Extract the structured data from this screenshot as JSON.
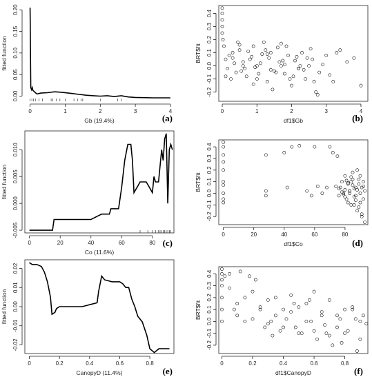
{
  "chart_data": [
    {
      "type": "line",
      "panel_label": "(a)",
      "xlabel": "Gb (19.4%)",
      "ylabel": "fitted function",
      "xlim": [
        -0.15,
        4.1
      ],
      "ylim": [
        -0.012,
        0.21
      ],
      "xticks": [
        0,
        1,
        2,
        3,
        4
      ],
      "yticks": [
        0.0,
        0.05,
        0.1,
        0.15,
        0.2
      ],
      "ytick_labels": [
        "0.00",
        "0.05",
        "0.10",
        "0.15",
        "0.20"
      ],
      "rug": [
        0.0,
        0.05,
        0.1,
        0.15,
        0.25,
        0.35,
        0.6,
        0.65,
        0.75,
        0.85,
        1.0,
        1.25,
        1.35,
        1.45,
        1.5,
        2.0,
        2.5,
        2.6
      ],
      "series": [
        {
          "x": [
            0.0,
            0.02,
            0.04,
            0.06,
            0.08,
            0.1,
            0.15,
            0.2,
            0.3,
            0.5,
            0.7,
            0.9,
            1.2,
            1.4,
            1.6,
            1.8,
            2.0,
            2.2,
            2.4,
            2.6,
            2.8,
            3.0,
            3.5,
            4.0
          ],
          "y": [
            0.205,
            0.02,
            0.015,
            0.02,
            0.013,
            0.012,
            0.008,
            0.005,
            0.007,
            0.008,
            0.01,
            0.009,
            0.006,
            0.004,
            0.002,
            0.001,
            0.0,
            0.001,
            -0.001,
            0.001,
            -0.002,
            -0.003,
            -0.004,
            -0.004
          ]
        }
      ]
    },
    {
      "type": "scatter",
      "panel_label": "(b)",
      "xlabel": "df1$Gb",
      "ylabel": "BRT$fit",
      "xlim": [
        -0.1,
        4.2
      ],
      "ylim": [
        -0.27,
        0.46
      ],
      "xticks": [
        0,
        1,
        2,
        3,
        4
      ],
      "yticks": [
        -0.2,
        -0.1,
        0.0,
        0.1,
        0.2,
        0.3,
        0.4
      ],
      "ytick_labels": [
        "-0.2",
        "-0.1",
        "0.0",
        "0.1",
        "0.2",
        "0.3",
        "0.4"
      ],
      "series": [
        {
          "x": [
            0.0,
            0.0,
            0.0,
            0.0,
            0.0,
            0.02,
            0.05,
            0.1,
            0.15,
            0.2,
            0.3,
            0.4,
            0.5,
            0.6,
            0.7,
            0.8,
            0.9,
            1.0,
            1.1,
            1.2,
            1.3,
            1.35,
            1.4,
            1.5,
            1.6,
            1.7,
            1.8,
            1.9,
            2.0,
            2.1,
            2.2,
            2.3,
            2.4,
            2.5,
            2.6,
            2.7,
            2.8,
            3.0,
            3.2,
            3.4,
            3.6,
            3.8,
            4.0,
            0.25,
            0.45,
            0.65,
            0.85,
            1.05,
            1.25,
            1.45,
            1.65,
            1.85,
            2.05,
            2.25,
            2.45,
            2.65,
            0.35,
            0.55,
            0.75,
            0.95,
            1.15,
            1.55,
            1.75,
            1.95,
            2.15,
            2.35,
            2.55,
            2.75,
            2.9,
            3.1,
            3.3,
            0.1,
            0.3,
            0.6,
            1.0,
            1.4,
            1.8,
            2.2,
            0.5,
            0.9,
            1.3,
            1.7
          ],
          "y": [
            0.44,
            0.4,
            0.35,
            0.3,
            0.25,
            0.2,
            0.15,
            0.05,
            -0.02,
            0.08,
            0.1,
            -0.05,
            0.12,
            0.0,
            -0.08,
            0.05,
            0.15,
            -0.1,
            0.02,
            0.18,
            -0.12,
            0.06,
            0.1,
            -0.04,
            0.14,
            0.0,
            -0.06,
            0.08,
            -0.15,
            0.04,
            -0.02,
            0.1,
            -0.1,
            0.0,
            0.05,
            -0.2,
            -0.05,
            0.08,
            -0.12,
            0.12,
            0.03,
            0.06,
            -0.15,
            -0.1,
            0.18,
            -0.02,
            0.07,
            -0.06,
            0.12,
            -0.18,
            0.03,
            0.15,
            -0.08,
            0.0,
            0.06,
            -0.12,
            0.02,
            -0.04,
            0.11,
            -0.01,
            0.09,
            -0.05,
            0.04,
            -0.1,
            0.07,
            -0.03,
            0.13,
            -0.22,
            0.01,
            -0.07,
            0.1,
            -0.08,
            0.06,
            0.03,
            0.0,
            -0.03,
            0.01,
            -0.02,
            0.16,
            -0.14,
            0.09,
            0.17
          ]
        }
      ]
    },
    {
      "type": "line",
      "panel_label": "(c)",
      "xlabel": "Co (11.6%)",
      "ylabel": "fitted function",
      "xlim": [
        -3,
        94
      ],
      "ylim": [
        -0.0055,
        0.0135
      ],
      "xticks": [
        0,
        20,
        40,
        60,
        80
      ],
      "yticks": [
        -0.005,
        0.0,
        0.005,
        0.01
      ],
      "ytick_labels": [
        "-0.005",
        "0.000",
        "0.005",
        "0.010"
      ],
      "rug": [
        72,
        77,
        80,
        82,
        84,
        85,
        86,
        87,
        88,
        89,
        90,
        91,
        92
      ],
      "series": [
        {
          "x": [
            0,
            5,
            10,
            15,
            16,
            20,
            30,
            40,
            47,
            48,
            52,
            53,
            58,
            60,
            62,
            64,
            66,
            67,
            68,
            70,
            72,
            74,
            76,
            78,
            80,
            81,
            82,
            84,
            86,
            87,
            88,
            89,
            90,
            91,
            92,
            93
          ],
          "y": [
            -0.005,
            -0.005,
            -0.005,
            -0.005,
            -0.003,
            -0.003,
            -0.003,
            -0.003,
            -0.002,
            -0.002,
            -0.002,
            -0.001,
            -0.001,
            0.003,
            0.008,
            0.011,
            0.011,
            0.008,
            0.002,
            0.003,
            0.004,
            0.004,
            0.004,
            0.003,
            0.002,
            0.005,
            0.004,
            0.004,
            0.01,
            0.008,
            0.012,
            0.013,
            0.0,
            0.01,
            0.011,
            0.01
          ]
        }
      ]
    },
    {
      "type": "scatter",
      "panel_label": "(d)",
      "xlabel": "df1$Co",
      "ylabel": "BRT$fit",
      "xlim": [
        -3,
        95
      ],
      "ylim": [
        -0.27,
        0.46
      ],
      "xticks": [
        0,
        20,
        40,
        60,
        80
      ],
      "yticks": [
        -0.2,
        -0.1,
        0.0,
        0.1,
        0.2,
        0.3,
        0.4
      ],
      "ytick_labels": [
        "-0.2",
        "-0.1",
        "0.0",
        "0.1",
        "0.2",
        "0.3",
        "0.4"
      ],
      "series": [
        {
          "x": [
            0,
            0,
            0,
            0,
            0,
            0,
            0,
            0,
            0,
            0,
            28,
            28,
            28,
            40,
            42,
            45,
            50,
            60,
            62,
            65,
            68,
            70,
            72,
            74,
            75,
            76,
            77,
            78,
            79,
            80,
            81,
            82,
            83,
            84,
            85,
            86,
            87,
            88,
            89,
            90,
            91,
            92,
            93,
            80,
            82,
            84,
            86,
            88,
            90,
            92,
            85,
            87,
            89,
            91,
            93,
            83,
            85,
            87,
            89,
            91,
            78,
            80,
            82,
            84,
            86,
            88,
            90,
            92,
            76,
            79,
            81,
            83,
            55,
            58
          ],
          "y": [
            0.44,
            0.4,
            0.33,
            0.27,
            0.2,
            0.1,
            0.0,
            -0.05,
            -0.08,
            0.07,
            0.33,
            0.02,
            -0.02,
            0.35,
            0.05,
            0.4,
            0.41,
            0.4,
            0.06,
            0.0,
            0.05,
            0.4,
            0.35,
            0.06,
            0.32,
            -0.02,
            0.05,
            0.1,
            0.0,
            0.15,
            -0.05,
            0.08,
            0.02,
            -0.1,
            0.12,
            -0.03,
            0.05,
            0.2,
            -0.12,
            0.0,
            -0.2,
            0.1,
            -0.25,
            0.03,
            -0.08,
            0.1,
            0.04,
            -0.15,
            0.15,
            -0.05,
            0.07,
            -0.02,
            0.12,
            -0.18,
            0.02,
            0.0,
            0.18,
            -0.06,
            0.08,
            0.05,
            0.01,
            -0.03,
            0.09,
            0.14,
            -0.1,
            0.03,
            -0.08,
            0.06,
            0.04,
            -0.01,
            0.11,
            0.02,
            0.02,
            -0.02
          ]
        }
      ]
    },
    {
      "type": "line",
      "panel_label": "(e)",
      "xlabel": "CanopyD (11.4%)",
      "ylabel": "fitted function",
      "xlim": [
        -0.03,
        0.96
      ],
      "ylim": [
        -0.0245,
        0.0245
      ],
      "xticks": [
        0.0,
        0.2,
        0.4,
        0.6,
        0.8
      ],
      "yticks": [
        -0.02,
        -0.01,
        0.0,
        0.01,
        0.02
      ],
      "ytick_labels": [
        "-0.02",
        "-0.01",
        "0.00",
        "0.01",
        "0.02"
      ],
      "rug": [],
      "series": [
        {
          "x": [
            0.0,
            0.02,
            0.05,
            0.08,
            0.1,
            0.12,
            0.14,
            0.15,
            0.17,
            0.18,
            0.2,
            0.25,
            0.3,
            0.35,
            0.4,
            0.45,
            0.46,
            0.48,
            0.5,
            0.55,
            0.6,
            0.62,
            0.64,
            0.66,
            0.68,
            0.7,
            0.72,
            0.75,
            0.78,
            0.8,
            0.83,
            0.86,
            0.9,
            0.93
          ],
          "y": [
            0.023,
            0.022,
            0.022,
            0.021,
            0.018,
            0.013,
            0.005,
            -0.004,
            -0.003,
            -0.001,
            0.0,
            0.0,
            0.0,
            0.0,
            0.001,
            0.002,
            0.008,
            0.016,
            0.014,
            0.013,
            0.013,
            0.012,
            0.01,
            0.01,
            0.004,
            0.0,
            -0.005,
            -0.008,
            -0.015,
            -0.022,
            -0.024,
            -0.022,
            -0.022,
            -0.022
          ]
        }
      ]
    },
    {
      "type": "scatter",
      "panel_label": "(f)",
      "xlabel": "df1$CanopyD",
      "ylabel": "BRT$fit",
      "xlim": [
        -0.02,
        0.95
      ],
      "ylim": [
        -0.27,
        0.46
      ],
      "xticks": [
        0.0,
        0.2,
        0.4,
        0.6,
        0.8
      ],
      "yticks": [
        -0.2,
        -0.1,
        0.0,
        0.1,
        0.2,
        0.3,
        0.4
      ],
      "ytick_labels": [
        "-0.2",
        "-0.1",
        "0.0",
        "0.1",
        "0.2",
        "0.3",
        "0.4"
      ],
      "series": [
        {
          "x": [
            0.0,
            0.0,
            0.0,
            0.0,
            0.0,
            0.0,
            0.0,
            0.02,
            0.05,
            0.08,
            0.1,
            0.12,
            0.15,
            0.18,
            0.2,
            0.22,
            0.25,
            0.28,
            0.3,
            0.32,
            0.35,
            0.38,
            0.4,
            0.42,
            0.45,
            0.48,
            0.5,
            0.52,
            0.55,
            0.58,
            0.6,
            0.62,
            0.65,
            0.68,
            0.7,
            0.72,
            0.75,
            0.78,
            0.8,
            0.82,
            0.85,
            0.88,
            0.9,
            0.92,
            0.94,
            0.1,
            0.3,
            0.5,
            0.7,
            0.9,
            0.15,
            0.35,
            0.55,
            0.75,
            0.25,
            0.45,
            0.65,
            0.85,
            0.4,
            0.6,
            0.8,
            0.05,
            0.2,
            0.33,
            0.47,
            0.57,
            0.67,
            0.77,
            0.87
          ],
          "y": [
            0.44,
            0.4,
            0.35,
            0.3,
            0.2,
            0.1,
            0.0,
            0.38,
            0.4,
            0.1,
            0.15,
            0.42,
            0.0,
            0.38,
            0.25,
            0.35,
            0.1,
            -0.05,
            0.18,
            0.0,
            0.2,
            -0.08,
            0.1,
            0.02,
            0.22,
            -0.05,
            0.12,
            -0.1,
            0.15,
            0.0,
            0.25,
            -0.15,
            0.08,
            -0.1,
            0.18,
            -0.2,
            0.05,
            -0.18,
            0.1,
            -0.08,
            0.12,
            -0.25,
            0.0,
            0.05,
            -0.02,
            0.05,
            -0.02,
            -0.1,
            -0.12,
            -0.15,
            0.2,
            0.05,
            0.0,
            -0.05,
            0.12,
            0.08,
            0.05,
            0.1,
            -0.05,
            -0.08,
            -0.1,
            0.28,
            0.02,
            -0.12,
            0.15,
            0.18,
            -0.03,
            0.02,
            0.02
          ]
        }
      ]
    }
  ]
}
